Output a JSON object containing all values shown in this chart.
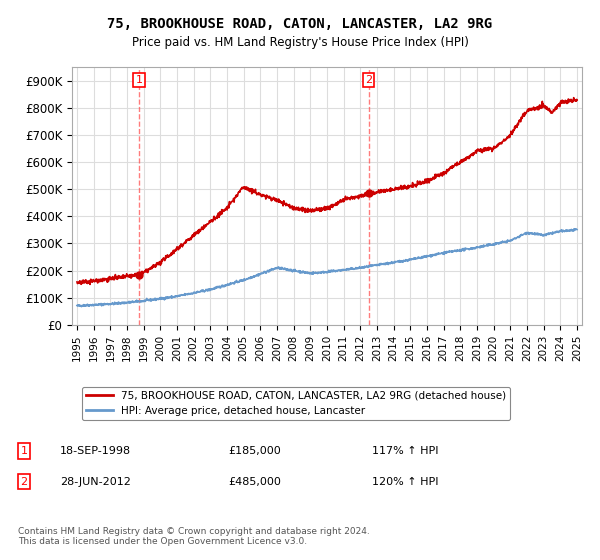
{
  "title": "75, BROOKHOUSE ROAD, CATON, LANCASTER, LA2 9RG",
  "subtitle": "Price paid vs. HM Land Registry's House Price Index (HPI)",
  "background_color": "#ffffff",
  "plot_bg_color": "#ffffff",
  "grid_color": "#dddddd",
  "ylim": [
    0,
    950000
  ],
  "yticks": [
    0,
    100000,
    200000,
    300000,
    400000,
    500000,
    600000,
    700000,
    800000,
    900000
  ],
  "ytick_labels": [
    "£0",
    "£100K",
    "£200K",
    "£300K",
    "£400K",
    "£500K",
    "£600K",
    "£700K",
    "£800K",
    "£900K"
  ],
  "xmin_year": 1995,
  "xmax_year": 2025,
  "sale1_date": 1998.72,
  "sale1_price": 185000,
  "sale1_label": "1",
  "sale2_date": 2012.49,
  "sale2_price": 485000,
  "sale2_label": "2",
  "sale1_vline_color": "#ff4444",
  "sale2_vline_color": "#ff4444",
  "sale_dot_color": "#cc0000",
  "hpi_line_color": "#6699cc",
  "price_line_color": "#cc0000",
  "legend_label_price": "75, BROOKHOUSE ROAD, CATON, LANCASTER, LA2 9RG (detached house)",
  "legend_label_hpi": "HPI: Average price, detached house, Lancaster",
  "annotation1_date": "18-SEP-1998",
  "annotation1_price": "£185,000",
  "annotation1_hpi": "117% ↑ HPI",
  "annotation1_num": "1",
  "annotation2_date": "28-JUN-2012",
  "annotation2_price": "£485,000",
  "annotation2_hpi": "120% ↑ HPI",
  "annotation2_num": "2",
  "footnote": "Contains HM Land Registry data © Crown copyright and database right 2024.\nThis data is licensed under the Open Government Licence v3.0.",
  "xtick_years": [
    1995,
    1996,
    1997,
    1998,
    1999,
    2000,
    2001,
    2002,
    2003,
    2004,
    2005,
    2006,
    2007,
    2008,
    2009,
    2010,
    2011,
    2012,
    2013,
    2014,
    2015,
    2016,
    2017,
    2018,
    2019,
    2020,
    2021,
    2022,
    2023,
    2024,
    2025
  ]
}
